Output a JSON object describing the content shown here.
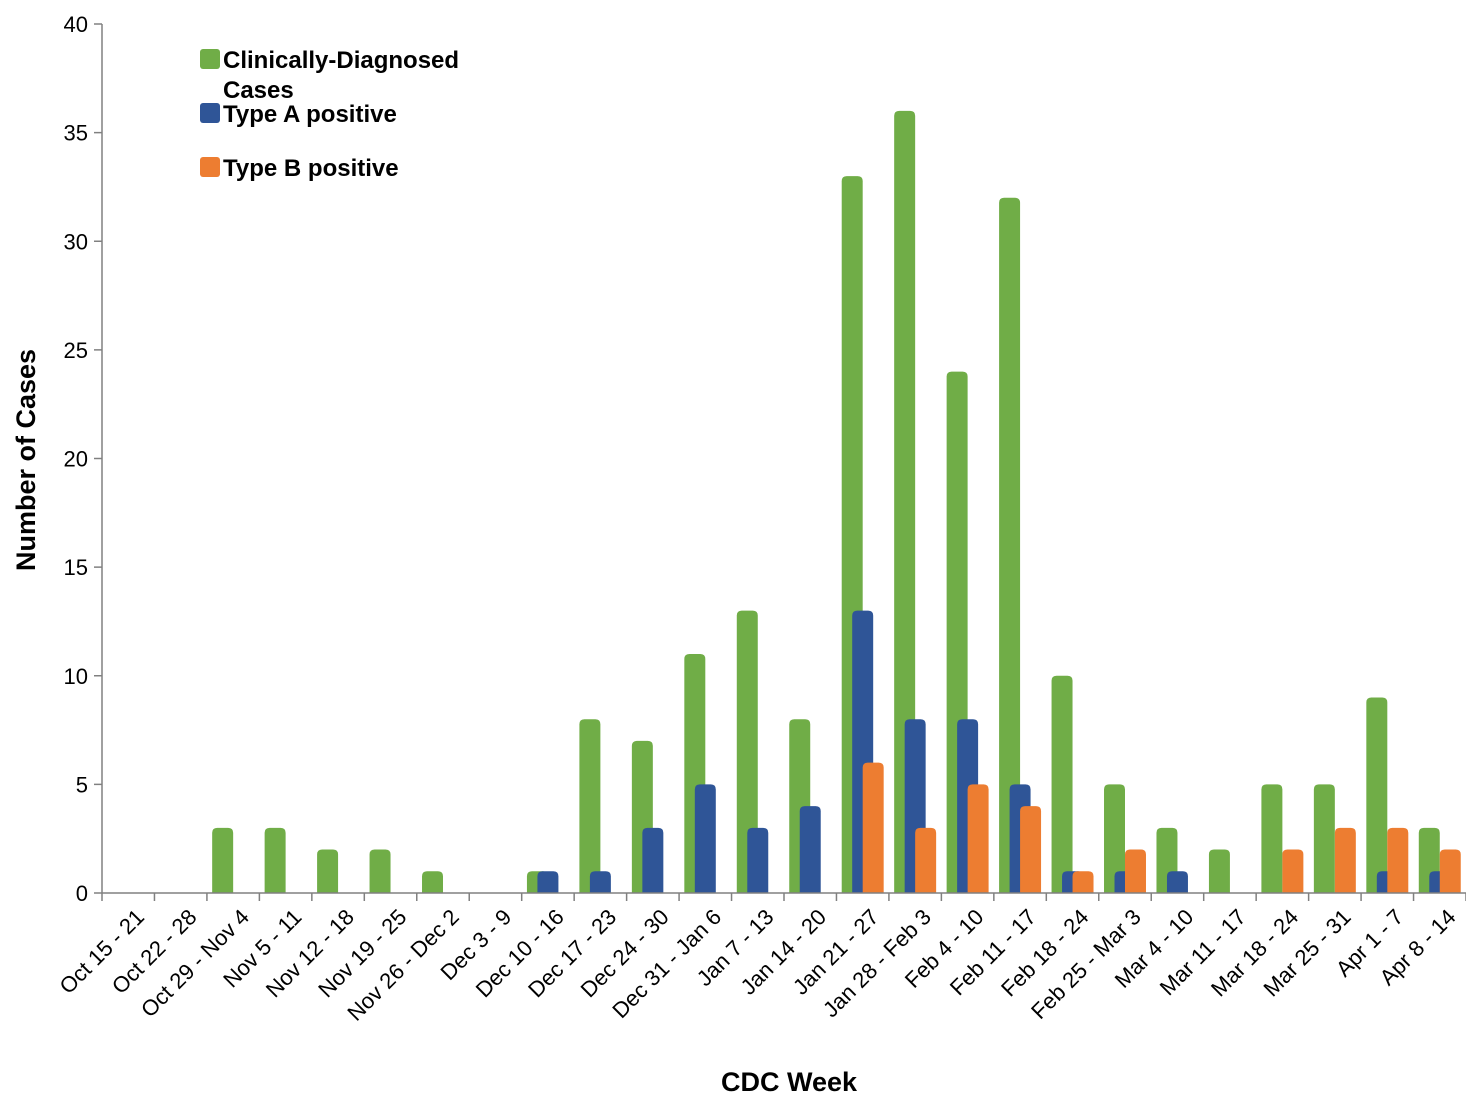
{
  "chart_data": {
    "type": "bar",
    "xlabel": "CDC Week",
    "ylabel": "Number of Cases",
    "ylim": [
      0,
      40
    ],
    "yticks": [
      0,
      5,
      10,
      15,
      20,
      25,
      30,
      35,
      40
    ],
    "grid": false,
    "legend_position": "top-left",
    "categories": [
      "Oct 15 - 21",
      "Oct 22 - 28",
      "Oct 29 - Nov 4",
      "Nov 5 - 11",
      "Nov 12 - 18",
      "Nov 19 - 25",
      "Nov 26 - Dec 2",
      "Dec 3 - 9",
      "Dec 10 - 16",
      "Dec 17 - 23",
      "Dec 24 - 30",
      "Dec 31 - Jan 6",
      "Jan 7 - 13",
      "Jan 14 - 20",
      "Jan 21 - 27",
      "Jan 28 - Feb 3",
      "Feb 4 - 10",
      "Feb 11 - 17",
      "Feb 18 - 24",
      "Feb 25 - Mar 3",
      "Mar 4 - 10",
      "Mar 11 - 17",
      "Mar 18 - 24",
      "Mar 25 - 31",
      "Apr 1 - 7",
      "Apr 8 - 14"
    ],
    "series": [
      {
        "name": "Clinically-Diagnosed Cases",
        "color": "#70ad47",
        "values": [
          0,
          0,
          3,
          3,
          2,
          2,
          1,
          0,
          1,
          8,
          7,
          11,
          13,
          8,
          33,
          36,
          24,
          32,
          10,
          5,
          3,
          2,
          5,
          5,
          9,
          3
        ]
      },
      {
        "name": "Type A positive",
        "color": "#2f5597",
        "values": [
          0,
          0,
          0,
          0,
          0,
          0,
          0,
          0,
          1,
          1,
          3,
          5,
          3,
          4,
          13,
          8,
          8,
          5,
          1,
          1,
          1,
          0,
          0,
          0,
          1,
          1
        ]
      },
      {
        "name": "Type B positive",
        "color": "#ed7d31",
        "values": [
          0,
          0,
          0,
          0,
          0,
          0,
          0,
          0,
          0,
          0,
          0,
          0,
          0,
          0,
          6,
          3,
          5,
          4,
          1,
          2,
          0,
          0,
          2,
          3,
          3,
          2
        ]
      }
    ]
  }
}
